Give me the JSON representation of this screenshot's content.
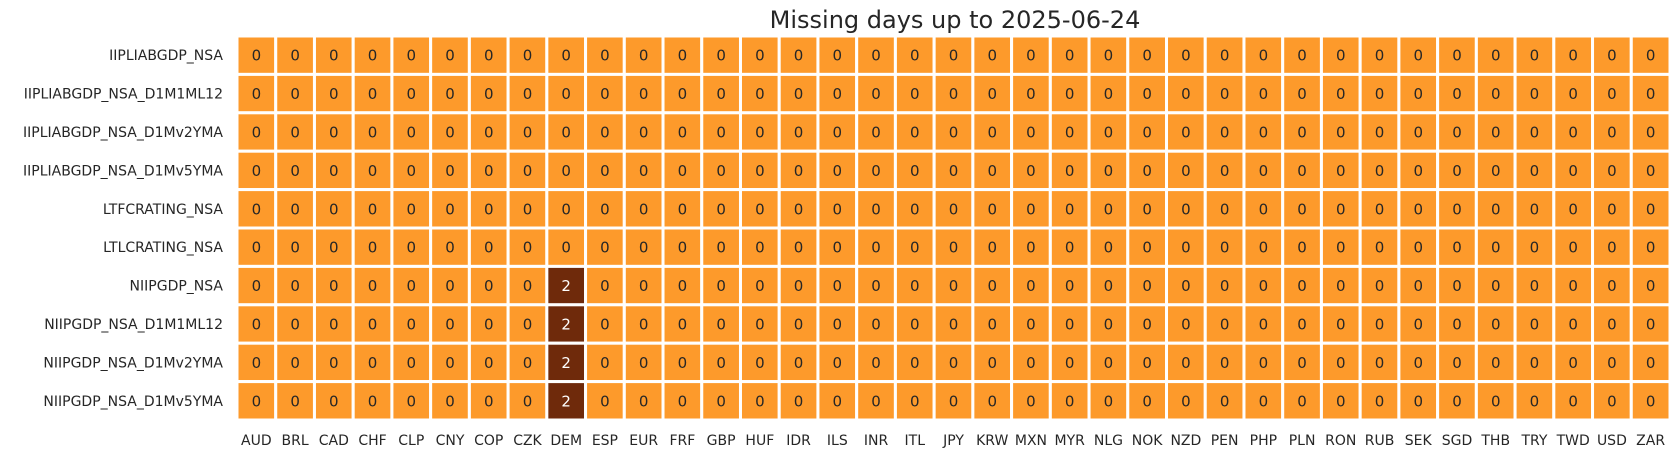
{
  "chart_data": {
    "type": "heatmap",
    "title": "Missing days up to 2025-06-24",
    "xlabel": "",
    "ylabel": "",
    "columns": [
      "AUD",
      "BRL",
      "CAD",
      "CHF",
      "CLP",
      "CNY",
      "COP",
      "CZK",
      "DEM",
      "ESP",
      "EUR",
      "FRF",
      "GBP",
      "HUF",
      "IDR",
      "ILS",
      "INR",
      "ITL",
      "JPY",
      "KRW",
      "MXN",
      "MYR",
      "NLG",
      "NOK",
      "NZD",
      "PEN",
      "PHP",
      "PLN",
      "RON",
      "RUB",
      "SEK",
      "SGD",
      "THB",
      "TRY",
      "TWD",
      "USD",
      "ZAR"
    ],
    "rows": [
      "IIPLIABGDP_NSA",
      "IIPLIABGDP_NSA_D1M1ML12",
      "IIPLIABGDP_NSA_D1Mv2YMA",
      "IIPLIABGDP_NSA_D1Mv5YMA",
      "LTFCRATING_NSA",
      "LTLCRATING_NSA",
      "NIIPGDP_NSA",
      "NIIPGDP_NSA_D1M1ML12",
      "NIIPGDP_NSA_D1Mv2YMA",
      "NIIPGDP_NSA_D1Mv5YMA"
    ],
    "values": [
      [
        0,
        0,
        0,
        0,
        0,
        0,
        0,
        0,
        0,
        0,
        0,
        0,
        0,
        0,
        0,
        0,
        0,
        0,
        0,
        0,
        0,
        0,
        0,
        0,
        0,
        0,
        0,
        0,
        0,
        0,
        0,
        0,
        0,
        0,
        0,
        0,
        0
      ],
      [
        0,
        0,
        0,
        0,
        0,
        0,
        0,
        0,
        0,
        0,
        0,
        0,
        0,
        0,
        0,
        0,
        0,
        0,
        0,
        0,
        0,
        0,
        0,
        0,
        0,
        0,
        0,
        0,
        0,
        0,
        0,
        0,
        0,
        0,
        0,
        0,
        0
      ],
      [
        0,
        0,
        0,
        0,
        0,
        0,
        0,
        0,
        0,
        0,
        0,
        0,
        0,
        0,
        0,
        0,
        0,
        0,
        0,
        0,
        0,
        0,
        0,
        0,
        0,
        0,
        0,
        0,
        0,
        0,
        0,
        0,
        0,
        0,
        0,
        0,
        0
      ],
      [
        0,
        0,
        0,
        0,
        0,
        0,
        0,
        0,
        0,
        0,
        0,
        0,
        0,
        0,
        0,
        0,
        0,
        0,
        0,
        0,
        0,
        0,
        0,
        0,
        0,
        0,
        0,
        0,
        0,
        0,
        0,
        0,
        0,
        0,
        0,
        0,
        0
      ],
      [
        0,
        0,
        0,
        0,
        0,
        0,
        0,
        0,
        0,
        0,
        0,
        0,
        0,
        0,
        0,
        0,
        0,
        0,
        0,
        0,
        0,
        0,
        0,
        0,
        0,
        0,
        0,
        0,
        0,
        0,
        0,
        0,
        0,
        0,
        0,
        0,
        0
      ],
      [
        0,
        0,
        0,
        0,
        0,
        0,
        0,
        0,
        0,
        0,
        0,
        0,
        0,
        0,
        0,
        0,
        0,
        0,
        0,
        0,
        0,
        0,
        0,
        0,
        0,
        0,
        0,
        0,
        0,
        0,
        0,
        0,
        0,
        0,
        0,
        0,
        0
      ],
      [
        0,
        0,
        0,
        0,
        0,
        0,
        0,
        0,
        2,
        0,
        0,
        0,
        0,
        0,
        0,
        0,
        0,
        0,
        0,
        0,
        0,
        0,
        0,
        0,
        0,
        0,
        0,
        0,
        0,
        0,
        0,
        0,
        0,
        0,
        0,
        0,
        0
      ],
      [
        0,
        0,
        0,
        0,
        0,
        0,
        0,
        0,
        2,
        0,
        0,
        0,
        0,
        0,
        0,
        0,
        0,
        0,
        0,
        0,
        0,
        0,
        0,
        0,
        0,
        0,
        0,
        0,
        0,
        0,
        0,
        0,
        0,
        0,
        0,
        0,
        0
      ],
      [
        0,
        0,
        0,
        0,
        0,
        0,
        0,
        0,
        2,
        0,
        0,
        0,
        0,
        0,
        0,
        0,
        0,
        0,
        0,
        0,
        0,
        0,
        0,
        0,
        0,
        0,
        0,
        0,
        0,
        0,
        0,
        0,
        0,
        0,
        0,
        0,
        0
      ],
      [
        0,
        0,
        0,
        0,
        0,
        0,
        0,
        0,
        2,
        0,
        0,
        0,
        0,
        0,
        0,
        0,
        0,
        0,
        0,
        0,
        0,
        0,
        0,
        0,
        0,
        0,
        0,
        0,
        0,
        0,
        0,
        0,
        0,
        0,
        0,
        0,
        0
      ]
    ],
    "colors": {
      "low": "#fd9a2b",
      "high": "#6f2a0b",
      "low_text": "#262626",
      "high_text": "#ffffff",
      "cell_border": "#ffffff"
    },
    "grid": false,
    "legend": "none"
  }
}
